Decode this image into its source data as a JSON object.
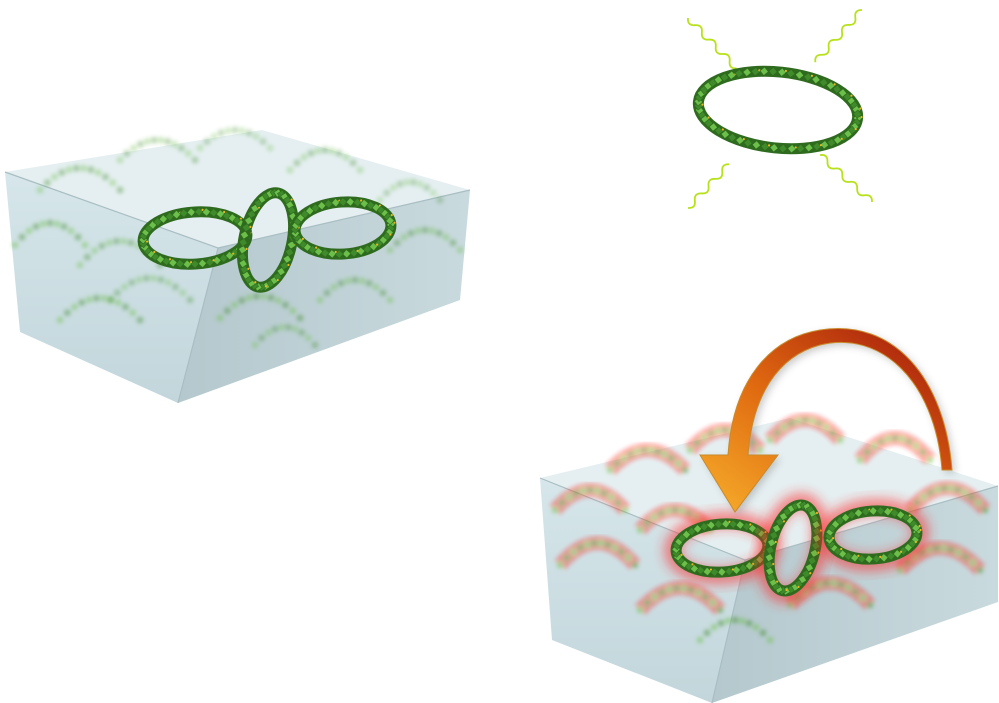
{
  "colors": {
    "background": "#ffffff",
    "slab_top": "#e6f0f2",
    "slab_front": "#cfe0e4",
    "slab_side": "#b9ccd1",
    "slab_edge": "#a9bec3",
    "ring_dark": "#2f6b1e",
    "ring_mid": "#3f8a2a",
    "ring_light": "#6cbf4a",
    "ring_node": "#f2b61d",
    "ligand_wave": "#b7e21a",
    "glow": "#ff2020",
    "arrow_start": "#f7b02c",
    "arrow_mid": "#e06a10",
    "arrow_end": "#a0140c"
  },
  "icons": {
    "free_ring": "polyoxometalate-ring-icon",
    "ligand": "wavy-ligand-icon",
    "transfer_arrow": "curved-arrow-icon"
  }
}
